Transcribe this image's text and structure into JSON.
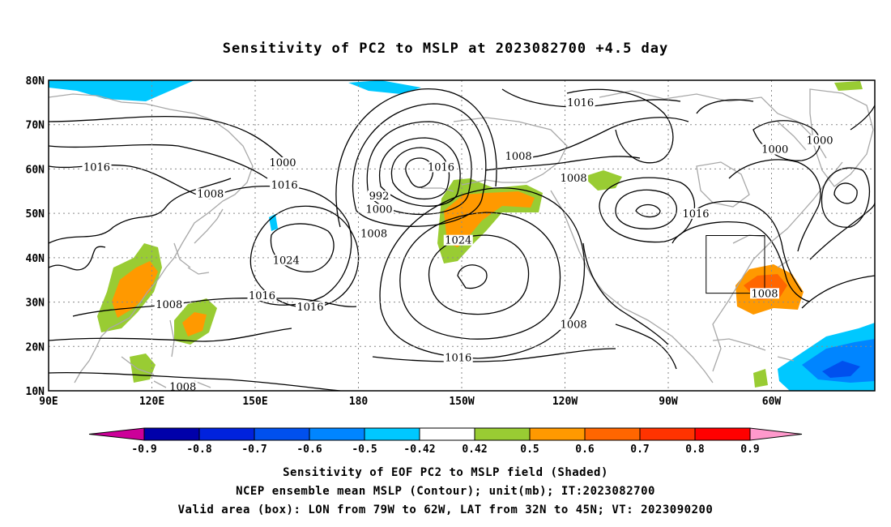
{
  "title": "Sensitivity of PC2 to MSLP at 2023082700 +4.5 day",
  "map": {
    "lat_labels": [
      "80N",
      "70N",
      "60N",
      "50N",
      "40N",
      "30N",
      "20N",
      "10N"
    ],
    "lon_labels": [
      "90E",
      "120E",
      "150E",
      "180",
      "150W",
      "120W",
      "90W",
      "60W"
    ],
    "contour_labels": [
      {
        "text": "1016",
        "lon": 104,
        "lat": 60
      },
      {
        "text": "1008",
        "lon": 137,
        "lat": 54
      },
      {
        "text": "1000",
        "lon": 158,
        "lat": 61
      },
      {
        "text": "1016",
        "lon": 158.5,
        "lat": 56
      },
      {
        "text": "1024",
        "lon": 159,
        "lat": 39
      },
      {
        "text": "1016",
        "lon": 152,
        "lat": 31
      },
      {
        "text": "1016",
        "lon": 166,
        "lat": 28.5
      },
      {
        "text": "992",
        "lon": -174,
        "lat": 53.5
      },
      {
        "text": "1000",
        "lon": -174,
        "lat": 50.5
      },
      {
        "text": "1008",
        "lon": -175.5,
        "lat": 45
      },
      {
        "text": "1016",
        "lon": -156,
        "lat": 60
      },
      {
        "text": "1024",
        "lon": -151,
        "lat": 43.5
      },
      {
        "text": "1016",
        "lon": -151,
        "lat": 17
      },
      {
        "text": "1008",
        "lon": -133.5,
        "lat": 62.5
      },
      {
        "text": "1008",
        "lon": -117.5,
        "lat": 57.5
      },
      {
        "text": "1016",
        "lon": -115.5,
        "lat": 74.5
      },
      {
        "text": "1008",
        "lon": -117.5,
        "lat": 24.5
      },
      {
        "text": "1016",
        "lon": -82,
        "lat": 49.5
      },
      {
        "text": "1008",
        "lon": -62,
        "lat": 31.5
      },
      {
        "text": "1000",
        "lon": -59,
        "lat": 64
      },
      {
        "text": "1000",
        "lon": -46,
        "lat": 66
      },
      {
        "text": "1008",
        "lon": 125,
        "lat": 29
      },
      {
        "text": "1008",
        "lon": 129,
        "lat": 10.5
      }
    ],
    "box": {
      "lon_from": -79,
      "lon_to": -62,
      "lat_from": 32,
      "lat_to": 45
    }
  },
  "colorbar": {
    "levels": [
      "-0.9",
      "-0.8",
      "-0.7",
      "-0.6",
      "-0.5",
      "-0.42",
      "0.42",
      "0.5",
      "0.6",
      "0.7",
      "0.8",
      "0.9"
    ],
    "colors": [
      "#0000aa",
      "#0022dd",
      "#0050ee",
      "#0085ff",
      "#00c8ff",
      "#ffffff",
      "#99cc33",
      "#ff9900",
      "#ff6600",
      "#ff3300",
      "#ff0000"
    ],
    "low_color": "#cc0099",
    "high_color": "#ff99cc"
  },
  "shade_colors": {
    "green": "#99cc33",
    "orange": "#ff9900",
    "darkorange": "#ff6600",
    "cyan": "#00c8ff",
    "lightblue": "#0085ff",
    "blue": "#0050ee"
  },
  "captions": [
    "Sensitivity of EOF PC2 to MSLP field (Shaded)",
    "NCEP ensemble mean MSLP (Contour); unit(mb); IT:2023082700",
    "Valid area (box): LON from 79W to 62W, LAT from 32N to 45N; VT: 2023090200"
  ]
}
